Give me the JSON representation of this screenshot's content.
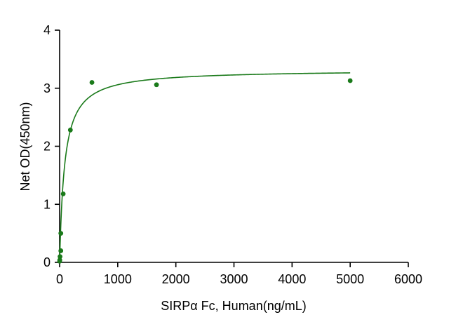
{
  "chart_data": {
    "type": "scatter",
    "xlabel": "SIRPα Fc, Human(ng/mL)",
    "ylabel": "Net OD(450nm)",
    "xlim": [
      0,
      6000
    ],
    "ylim": [
      0,
      4
    ],
    "x_ticks": [
      0,
      1000,
      2000,
      3000,
      4000,
      5000,
      6000
    ],
    "y_ticks": [
      0,
      1,
      2,
      3,
      4
    ],
    "grid": false,
    "color": "#1a7a1a",
    "series": [
      {
        "points": [
          {
            "x": 0,
            "y": 0.02
          },
          {
            "x": 2.3,
            "y": 0.04
          },
          {
            "x": 6.9,
            "y": 0.1
          },
          {
            "x": 20.6,
            "y": 0.2
          },
          {
            "x": 20.6,
            "y": 0.5
          },
          {
            "x": 61.7,
            "y": 1.18
          },
          {
            "x": 185,
            "y": 2.28
          },
          {
            "x": 556,
            "y": 3.1
          },
          {
            "x": 1667,
            "y": 3.06
          },
          {
            "x": 5000,
            "y": 3.13
          }
        ],
        "fit": {
          "model": "hyperbolic",
          "bmax": 3.32,
          "kd": 85,
          "x_range": [
            0,
            5000
          ]
        }
      }
    ]
  }
}
